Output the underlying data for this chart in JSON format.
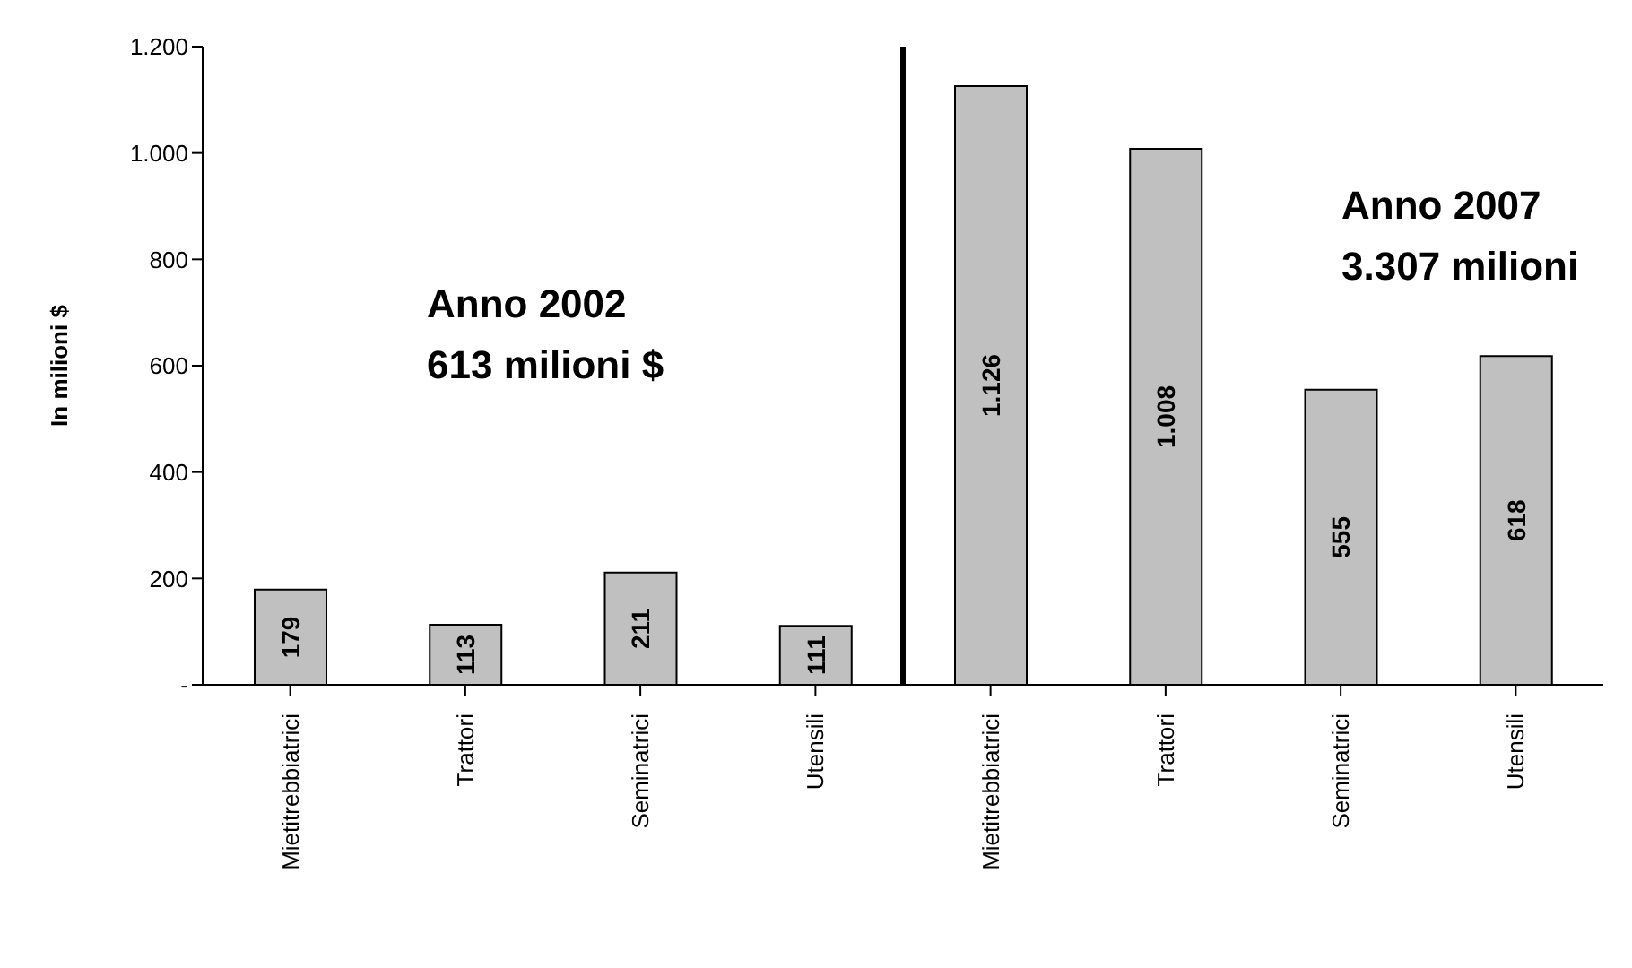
{
  "chart_data": {
    "type": "bar",
    "ylabel": "In milioni $",
    "categories": [
      "Mietitrebbiatrici",
      "Trattori",
      "Seminatrici",
      "Utensili",
      "Mietitrebbiatrici",
      "Trattori",
      "Seminatrici",
      "Utensili"
    ],
    "values": [
      179,
      113,
      211,
      111,
      1126,
      1008,
      555,
      618
    ],
    "value_labels": [
      "179",
      "113",
      "211",
      "111",
      "1.126",
      "1.008",
      "555",
      "618"
    ],
    "color": "#c0c0c0",
    "ylim": [
      0,
      1200
    ],
    "yticks": [
      {
        "value": 0,
        "label": "-"
      },
      200,
      400,
      600,
      800,
      {
        "value": 1000,
        "label": "1.000"
      },
      {
        "value": 1200,
        "label": "1.200"
      }
    ],
    "annotations": [
      "Anno 2002\n613 milioni $",
      "Anno 2007\n3.307 milioni"
    ],
    "grid": false,
    "legend": false
  }
}
